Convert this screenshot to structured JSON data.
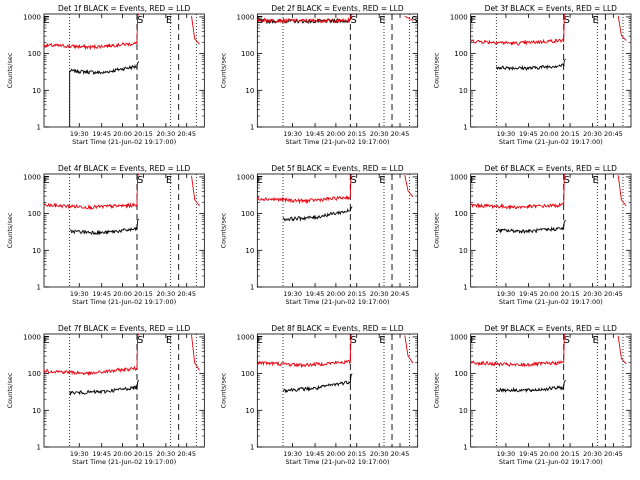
{
  "figure": {
    "xlabel": "Start Time (21-Jun-02 19:17:00)",
    "ylabel": "Counts/sec",
    "x_ticks": [
      "19:30",
      "19:45",
      "20:00",
      "20:15",
      "20:30",
      "20:45"
    ],
    "y_ticks": [
      "1",
      "10",
      "100",
      "1000"
    ],
    "markers": [
      "E",
      "S",
      "E",
      "S"
    ],
    "colors": {
      "black_series": "#000000",
      "red_series": "#e8000b",
      "axes": "#000000",
      "background": "#ffffff"
    }
  },
  "chart_data": [
    {
      "type": "line",
      "title": "Det 1f BLACK = Events, RED = LLD",
      "xlim": [
        0,
        100
      ],
      "ylim": [
        1,
        1200
      ],
      "yscale": "log",
      "vlines_dotted": [
        16,
        79,
        95
      ],
      "vlines_dashed": [
        58,
        84
      ],
      "series": [
        {
          "name": "Events",
          "color": "#000000",
          "x_start": 16,
          "x_end": 58,
          "level_start": 34,
          "level_mid": 30,
          "level_end": 45,
          "rise_to": 55,
          "drop_from": 34
        },
        {
          "name": "LLD",
          "color": "#e8000b",
          "x_start": 0,
          "x_end": 58,
          "level_start": 170,
          "level_mid": 150,
          "level_end": 190,
          "rise_to": 1100,
          "tail": [
            1100,
            250,
            180
          ]
        }
      ]
    },
    {
      "type": "line",
      "title": "Det 2f BLACK = Events, RED = LLD",
      "xlim": [
        0,
        100
      ],
      "ylim": [
        1,
        1200
      ],
      "yscale": "log",
      "vlines_dotted": [
        16,
        79,
        95
      ],
      "vlines_dashed": [
        58,
        84
      ],
      "series": [
        {
          "name": "Events",
          "color": "#000000",
          "x_start": 0,
          "x_end": 58,
          "level_start": 780,
          "level_mid": 760,
          "level_end": 780,
          "rise_to": 1100
        },
        {
          "name": "LLD",
          "color": "#e8000b",
          "x_start": 0,
          "x_end": 58,
          "level_start": 820,
          "level_mid": 790,
          "level_end": 800,
          "rise_to": 1100,
          "tail": [
            1100,
            900,
            780
          ]
        }
      ]
    },
    {
      "type": "line",
      "title": "Det 3f BLACK = Events, RED = LLD",
      "xlim": [
        0,
        100
      ],
      "ylim": [
        1,
        1200
      ],
      "yscale": "log",
      "vlines_dotted": [
        16,
        79,
        95
      ],
      "vlines_dashed": [
        58,
        84
      ],
      "series": [
        {
          "name": "Events",
          "color": "#000000",
          "x_start": 16,
          "x_end": 58,
          "level_start": 42,
          "level_mid": 40,
          "level_end": 48,
          "rise_to": 65
        },
        {
          "name": "LLD",
          "color": "#e8000b",
          "x_start": 0,
          "x_end": 58,
          "level_start": 220,
          "level_mid": 190,
          "level_end": 230,
          "rise_to": 1100,
          "tail": [
            1100,
            300,
            220
          ]
        }
      ]
    },
    {
      "type": "line",
      "title": "Det 4f BLACK = Events, RED = LLD",
      "xlim": [
        0,
        100
      ],
      "ylim": [
        1,
        1200
      ],
      "yscale": "log",
      "vlines_dotted": [
        16,
        79,
        95
      ],
      "vlines_dashed": [
        58,
        84
      ],
      "series": [
        {
          "name": "Events",
          "color": "#000000",
          "x_start": 16,
          "x_end": 58,
          "level_start": 33,
          "level_mid": 30,
          "level_end": 38,
          "rise_to": 65
        },
        {
          "name": "LLD",
          "color": "#e8000b",
          "x_start": 0,
          "x_end": 58,
          "level_start": 170,
          "level_mid": 150,
          "level_end": 170,
          "rise_to": 1100,
          "tail": [
            1100,
            250,
            170
          ]
        }
      ]
    },
    {
      "type": "line",
      "title": "Det 5f BLACK = Events, RED = LLD",
      "xlim": [
        0,
        100
      ],
      "ylim": [
        1,
        1200
      ],
      "yscale": "log",
      "vlines_dotted": [
        16,
        79,
        95
      ],
      "vlines_dashed": [
        58,
        84
      ],
      "series": [
        {
          "name": "Events",
          "color": "#000000",
          "x_start": 16,
          "x_end": 58,
          "level_start": 70,
          "level_mid": 80,
          "level_end": 120,
          "rise_to": 140
        },
        {
          "name": "LLD",
          "color": "#e8000b",
          "x_start": 0,
          "x_end": 58,
          "level_start": 260,
          "level_mid": 220,
          "level_end": 280,
          "rise_to": 1100,
          "tail": [
            1100,
            400,
            280
          ]
        }
      ]
    },
    {
      "type": "line",
      "title": "Det 6f BLACK = Events, RED = LLD",
      "xlim": [
        0,
        100
      ],
      "ylim": [
        1,
        1200
      ],
      "yscale": "log",
      "vlines_dotted": [
        16,
        79,
        95
      ],
      "vlines_dashed": [
        58,
        84
      ],
      "series": [
        {
          "name": "Events",
          "color": "#000000",
          "x_start": 16,
          "x_end": 58,
          "level_start": 35,
          "level_mid": 33,
          "level_end": 40,
          "rise_to": 60
        },
        {
          "name": "LLD",
          "color": "#e8000b",
          "x_start": 0,
          "x_end": 58,
          "level_start": 170,
          "level_mid": 150,
          "level_end": 170,
          "rise_to": 1100,
          "tail": [
            1100,
            250,
            170
          ]
        }
      ]
    },
    {
      "type": "line",
      "title": "Det 7f BLACK = Events, RED = LLD",
      "xlim": [
        0,
        100
      ],
      "ylim": [
        1,
        1200
      ],
      "yscale": "log",
      "vlines_dotted": [
        16,
        79,
        95
      ],
      "vlines_dashed": [
        58,
        84
      ],
      "series": [
        {
          "name": "Events",
          "color": "#000000",
          "x_start": 16,
          "x_end": 58,
          "level_start": 30,
          "level_mid": 32,
          "level_end": 42,
          "rise_to": 60
        },
        {
          "name": "LLD",
          "color": "#e8000b",
          "x_start": 0,
          "x_end": 58,
          "level_start": 120,
          "level_mid": 100,
          "level_end": 140,
          "rise_to": 1100,
          "tail": [
            1100,
            200,
            130
          ]
        }
      ]
    },
    {
      "type": "line",
      "title": "Det 8f BLACK = Events, RED = LLD",
      "xlim": [
        0,
        100
      ],
      "ylim": [
        1,
        1200
      ],
      "yscale": "log",
      "vlines_dotted": [
        16,
        79,
        95
      ],
      "vlines_dashed": [
        58,
        84
      ],
      "series": [
        {
          "name": "Events",
          "color": "#000000",
          "x_start": 16,
          "x_end": 58,
          "level_start": 35,
          "level_mid": 40,
          "level_end": 60,
          "rise_to": 90
        },
        {
          "name": "LLD",
          "color": "#e8000b",
          "x_start": 0,
          "x_end": 58,
          "level_start": 200,
          "level_mid": 170,
          "level_end": 210,
          "rise_to": 1100,
          "tail": [
            1100,
            300,
            200
          ]
        }
      ]
    },
    {
      "type": "line",
      "title": "Det 9f BLACK = Events, RED = LLD",
      "xlim": [
        0,
        100
      ],
      "ylim": [
        1,
        1200
      ],
      "yscale": "log",
      "vlines_dotted": [
        16,
        79,
        95
      ],
      "vlines_dashed": [
        58,
        84
      ],
      "series": [
        {
          "name": "Events",
          "color": "#000000",
          "x_start": 16,
          "x_end": 58,
          "level_start": 36,
          "level_mid": 35,
          "level_end": 42,
          "rise_to": 60
        },
        {
          "name": "LLD",
          "color": "#e8000b",
          "x_start": 0,
          "x_end": 58,
          "level_start": 200,
          "level_mid": 170,
          "level_end": 200,
          "rise_to": 1100,
          "tail": [
            1100,
            250,
            180
          ]
        }
      ]
    }
  ]
}
